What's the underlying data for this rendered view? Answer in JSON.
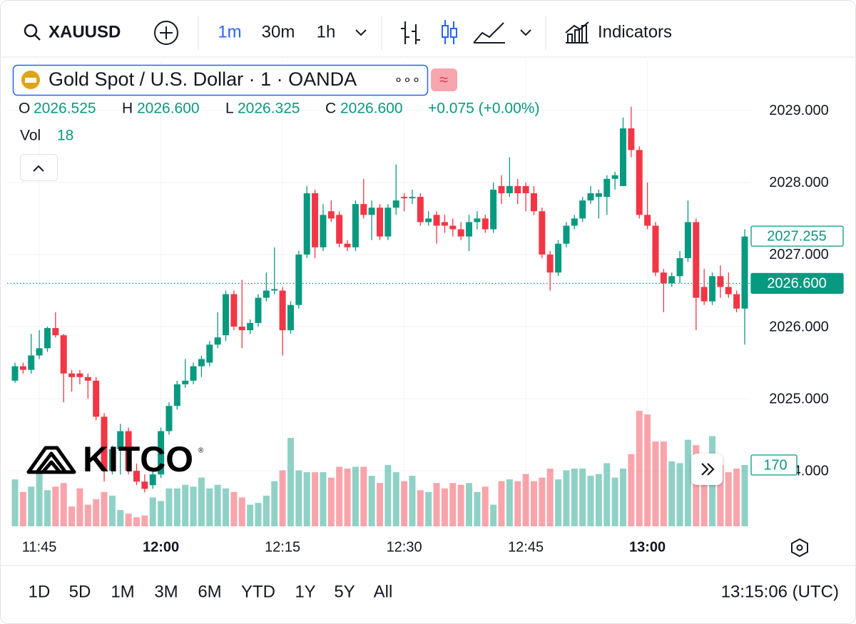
{
  "toolbar": {
    "symbol": "XAUUSD",
    "intervals": [
      "1m",
      "30m",
      "1h"
    ],
    "indicators": "Indicators"
  },
  "legend": {
    "title": "Gold Spot / U.S. Dollar · 1 · OANDA",
    "ohlc": [
      {
        "label": "O",
        "value": "2026.525"
      },
      {
        "label": "H",
        "value": "2026.600"
      },
      {
        "label": "L",
        "value": "2026.325"
      },
      {
        "label": "C",
        "value": "2026.600"
      }
    ],
    "change": "+0.075 (+0.00%)",
    "volume_label": "Vol",
    "volume_value": "18"
  },
  "watermark": "KITCO",
  "range_bar": {
    "ranges": [
      "1D",
      "5D",
      "1M",
      "3M",
      "6M",
      "YTD",
      "1Y",
      "5Y",
      "All"
    ],
    "time": "13:15:06 (UTC)"
  },
  "chart_data": {
    "type": "candlestick",
    "grid": true,
    "up_color": "#089981",
    "down_color": "#f23645",
    "categories": [
      null,
      null,
      null,
      "11:45",
      null,
      null,
      null,
      null,
      null,
      null,
      null,
      null,
      null,
      null,
      null,
      null,
      null,
      null,
      "12:00",
      null,
      null,
      null,
      null,
      null,
      null,
      null,
      null,
      null,
      null,
      null,
      null,
      null,
      null,
      "12:15",
      null,
      null,
      null,
      null,
      null,
      null,
      null,
      null,
      null,
      null,
      null,
      null,
      null,
      null,
      "12:30",
      null,
      null,
      null,
      null,
      null,
      null,
      null,
      null,
      null,
      null,
      null,
      null,
      null,
      null,
      "12:45",
      null,
      null,
      null,
      null,
      null,
      null,
      null,
      null,
      null,
      null,
      null,
      null,
      null,
      null,
      "13:00",
      null,
      null,
      null,
      null,
      null,
      null,
      null,
      null,
      null,
      null,
      null,
      null
    ],
    "open": [
      2025.25,
      2025.45,
      2025.4,
      2025.6,
      2025.7,
      2025.98,
      2025.88,
      2025.35,
      2025.35,
      2025.3,
      2025.25,
      2024.75,
      2024.0,
      2024.3,
      2024.55,
      2024.0,
      2023.85,
      2023.8,
      2023.95,
      2024.55,
      2024.9,
      2025.2,
      2025.25,
      2025.45,
      2025.5,
      2025.75,
      2025.88,
      2026.45,
      2026.0,
      2025.95,
      2026.05,
      2026.4,
      2026.5,
      2026.5,
      2025.95,
      2026.3,
      2027.0,
      2027.85,
      2027.1,
      2027.6,
      2027.55,
      2027.15,
      2027.1,
      2027.7,
      2027.55,
      2027.65,
      2027.25,
      2027.65,
      2027.8,
      2027.78,
      2027.8,
      2027.45,
      2027.55,
      2027.45,
      2027.4,
      2027.35,
      2027.25,
      2027.45,
      2027.5,
      2027.35,
      2027.95,
      2027.85,
      2027.95,
      2027.95,
      2027.85,
      2027.6,
      2027.0,
      2026.75,
      2027.15,
      2027.4,
      2027.5,
      2027.75,
      2027.8,
      2027.8,
      2028.05,
      2027.95,
      2028.75,
      2028.45,
      2027.55,
      2027.4,
      2026.75,
      2026.6,
      2026.7,
      2026.95,
      2027.45,
      2026.55,
      2026.35,
      2026.7,
      2026.55,
      2026.45,
      2026.25
    ],
    "high": [
      2025.5,
      2025.5,
      2025.9,
      2025.95,
      2026.0,
      2026.2,
      2025.9,
      2025.4,
      2025.4,
      2025.35,
      2025.3,
      2024.8,
      2024.35,
      2024.65,
      2024.6,
      2024.1,
      2023.95,
      2024.0,
      2024.6,
      2024.95,
      2025.25,
      2025.55,
      2025.5,
      2025.6,
      2025.8,
      2026.2,
      2026.5,
      2026.5,
      2026.65,
      2026.1,
      2026.45,
      2026.75,
      2027.1,
      2026.55,
      2026.35,
      2027.05,
      2027.95,
      2027.9,
      2027.7,
      2027.75,
      2027.6,
      2027.2,
      2027.75,
      2028.05,
      2027.75,
      2027.7,
      2027.7,
      2028.25,
      2027.85,
      2027.9,
      2027.85,
      2027.6,
      2027.6,
      2027.55,
      2027.5,
      2027.45,
      2027.55,
      2027.6,
      2027.55,
      2028.0,
      2028.1,
      2028.35,
      2028.05,
      2028.0,
      2027.95,
      2027.65,
      2027.05,
      2027.2,
      2027.45,
      2027.55,
      2027.8,
      2027.95,
      2027.9,
      2028.1,
      2028.15,
      2028.9,
      2029.05,
      2028.5,
      2028.0,
      2027.45,
      2026.8,
      2026.75,
      2027.05,
      2027.75,
      2027.5,
      2026.8,
      2026.75,
      2026.85,
      2026.75,
      2026.5,
      2027.35
    ],
    "low": [
      2025.22,
      2025.35,
      2025.35,
      2025.55,
      2025.65,
      2025.85,
      2024.95,
      2025.1,
      2025.2,
      2025.0,
      2024.7,
      2023.85,
      2023.95,
      2023.95,
      2023.95,
      2023.8,
      2023.7,
      2023.75,
      2023.9,
      2024.5,
      2024.85,
      2025.15,
      2025.2,
      2025.3,
      2025.45,
      2025.7,
      2025.8,
      2025.95,
      2025.7,
      2025.9,
      2026.0,
      2026.35,
      2026.45,
      2025.6,
      2025.9,
      2026.25,
      2026.95,
      2026.95,
      2027.05,
      2027.45,
      2027.1,
      2027.05,
      2027.05,
      2027.5,
      2027.2,
      2027.2,
      2027.2,
      2027.55,
      2027.6,
      2027.7,
      2027.4,
      2027.4,
      2027.15,
      2027.3,
      2027.25,
      2027.2,
      2027.05,
      2027.35,
      2027.3,
      2027.3,
      2027.7,
      2027.8,
      2027.7,
      2027.6,
      2027.55,
      2026.95,
      2026.5,
      2026.7,
      2027.1,
      2027.35,
      2027.45,
      2027.7,
      2027.5,
      2027.55,
      2027.9,
      2027.95,
      2028.35,
      2027.5,
      2027.35,
      2026.7,
      2026.2,
      2026.55,
      2026.6,
      2026.9,
      2025.95,
      2026.3,
      2026.3,
      2026.4,
      2026.4,
      2026.2,
      2025.75
    ],
    "close": [
      2025.45,
      2025.4,
      2025.6,
      2025.7,
      2025.98,
      2025.88,
      2025.35,
      2025.3,
      2025.3,
      2025.25,
      2024.75,
      2024.0,
      2024.3,
      2024.55,
      2024.0,
      2023.85,
      2023.75,
      2023.95,
      2024.55,
      2024.9,
      2025.2,
      2025.25,
      2025.45,
      2025.55,
      2025.75,
      2025.85,
      2026.45,
      2026.0,
      2025.95,
      2026.05,
      2026.4,
      2026.5,
      2026.52,
      2025.95,
      2026.3,
      2027.0,
      2027.85,
      2027.1,
      2027.55,
      2027.5,
      2027.15,
      2027.1,
      2027.7,
      2027.55,
      2027.65,
      2027.25,
      2027.65,
      2027.75,
      2027.78,
      2027.8,
      2027.45,
      2027.5,
      2027.4,
      2027.4,
      2027.35,
      2027.25,
      2027.45,
      2027.5,
      2027.35,
      2027.9,
      2027.85,
      2027.95,
      2027.85,
      2027.85,
      2027.6,
      2027.0,
      2026.75,
      2027.15,
      2027.4,
      2027.5,
      2027.75,
      2027.85,
      2027.85,
      2028.05,
      2028.1,
      2028.75,
      2028.45,
      2027.55,
      2027.4,
      2026.75,
      2026.6,
      2026.7,
      2026.95,
      2027.45,
      2026.4,
      2026.35,
      2026.7,
      2026.55,
      2026.45,
      2026.25,
      2027.25
    ],
    "volume": [
      130,
      95,
      110,
      155,
      100,
      110,
      120,
      55,
      105,
      60,
      75,
      95,
      85,
      45,
      35,
      25,
      30,
      80,
      70,
      105,
      105,
      115,
      110,
      135,
      105,
      115,
      105,
      95,
      80,
      60,
      65,
      85,
      125,
      155,
      245,
      155,
      150,
      150,
      150,
      135,
      165,
      160,
      165,
      165,
      140,
      120,
      170,
      150,
      125,
      140,
      100,
      95,
      120,
      105,
      120,
      115,
      120,
      95,
      110,
      60,
      125,
      130,
      125,
      145,
      125,
      135,
      160,
      130,
      155,
      160,
      160,
      140,
      145,
      175,
      135,
      160,
      200,
      320,
      310,
      235,
      235,
      180,
      175,
      240,
      225,
      185,
      250,
      170,
      150,
      160,
      170
    ],
    "volume_last_label": "170",
    "volume_ylim": [
      0,
      340
    ],
    "ylim": [
      2023.23,
      2029.69
    ],
    "yticks": [
      {
        "value": 2024,
        "label": "2024.000"
      },
      {
        "value": 2025,
        "label": "2025.000"
      },
      {
        "value": 2026,
        "label": "2026.000"
      },
      {
        "value": 2027,
        "label": "2027.000"
      },
      {
        "value": 2028,
        "label": "2028.000"
      },
      {
        "value": 2029,
        "label": "2029.000"
      }
    ],
    "price_lines": [
      {
        "value": 2027.255,
        "label": "2027.255",
        "style": "outline"
      },
      {
        "value": 2026.6,
        "label": "2026.600",
        "style": "filled"
      }
    ]
  }
}
